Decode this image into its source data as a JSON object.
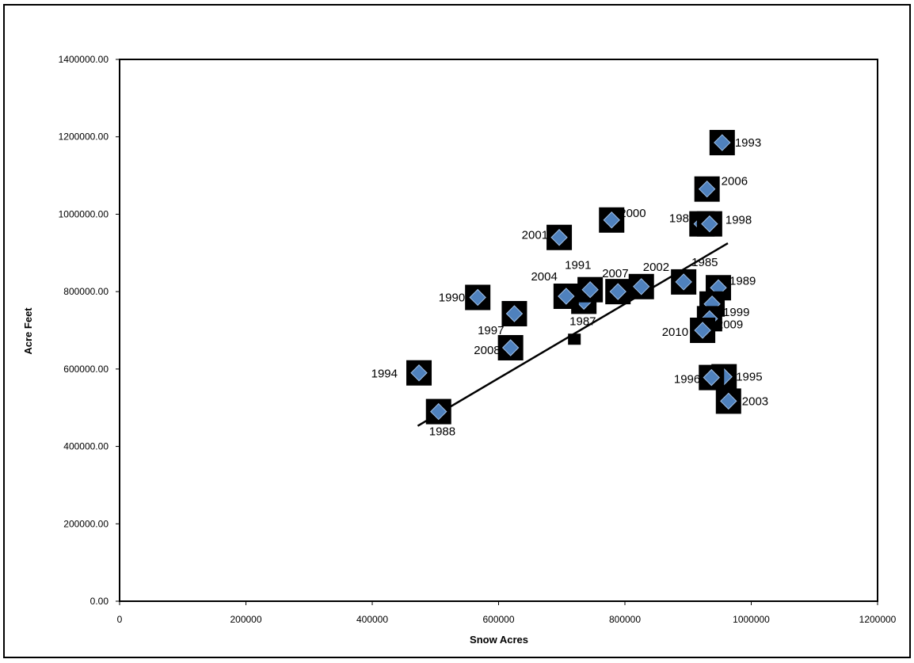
{
  "chart_data": {
    "type": "scatter",
    "title": "",
    "xlabel": "Snow Acres",
    "ylabel": "Acre Feet",
    "xlim": [
      0,
      1200000
    ],
    "ylim": [
      0,
      1400000
    ],
    "x_ticks": [
      "0",
      "200000",
      "400000",
      "600000",
      "800000",
      "1000000",
      "1200000"
    ],
    "y_ticks": [
      "0.00",
      "200000.00",
      "400000.00",
      "600000.00",
      "800000.00",
      "1000000.00",
      "1200000.00",
      "1400000.00"
    ],
    "grid": false,
    "legend": "none",
    "marker_color": "#4f81bd",
    "points": [
      {
        "label": "1985",
        "x": 893000,
        "y": 825000
      },
      {
        "label": "1986",
        "x": 922000,
        "y": 975000
      },
      {
        "label": "1987",
        "x": 735000,
        "y": 775000
      },
      {
        "label": "1988",
        "x": 505000,
        "y": 490000
      },
      {
        "label": "1989",
        "x": 948000,
        "y": 810000
      },
      {
        "label": "1990",
        "x": 567000,
        "y": 785000
      },
      {
        "label": "1991",
        "x": 745000,
        "y": 805000
      },
      {
        "label": "1993",
        "x": 954000,
        "y": 1185000
      },
      {
        "label": "1994",
        "x": 474000,
        "y": 590000
      },
      {
        "label": "1995",
        "x": 957000,
        "y": 580000
      },
      {
        "label": "1996",
        "x": 937000,
        "y": 578000
      },
      {
        "label": "1997",
        "x": 625000,
        "y": 743000
      },
      {
        "label": "1998",
        "x": 934000,
        "y": 975000
      },
      {
        "label": "1999",
        "x": 938000,
        "y": 768000
      },
      {
        "label": "2000",
        "x": 779000,
        "y": 985000
      },
      {
        "label": "2001",
        "x": 696000,
        "y": 940000
      },
      {
        "label": "2002",
        "x": 826000,
        "y": 813000
      },
      {
        "label": "2003",
        "x": 964000,
        "y": 517000
      },
      {
        "label": "2004",
        "x": 707000,
        "y": 788000
      },
      {
        "label": "2006",
        "x": 930000,
        "y": 1065000
      },
      {
        "label": "2007",
        "x": 789000,
        "y": 800000
      },
      {
        "label": "2008",
        "x": 619000,
        "y": 655000
      },
      {
        "label": "2009",
        "x": 934000,
        "y": 730000
      },
      {
        "label": "2010",
        "x": 923000,
        "y": 700000
      }
    ],
    "unlabeled_points": [
      {
        "x": 720000,
        "y": 677000
      }
    ],
    "trendline": {
      "type": "linear",
      "from": {
        "x": 472000,
        "y": 453000
      },
      "to": {
        "x": 963000,
        "y": 925000
      }
    }
  }
}
